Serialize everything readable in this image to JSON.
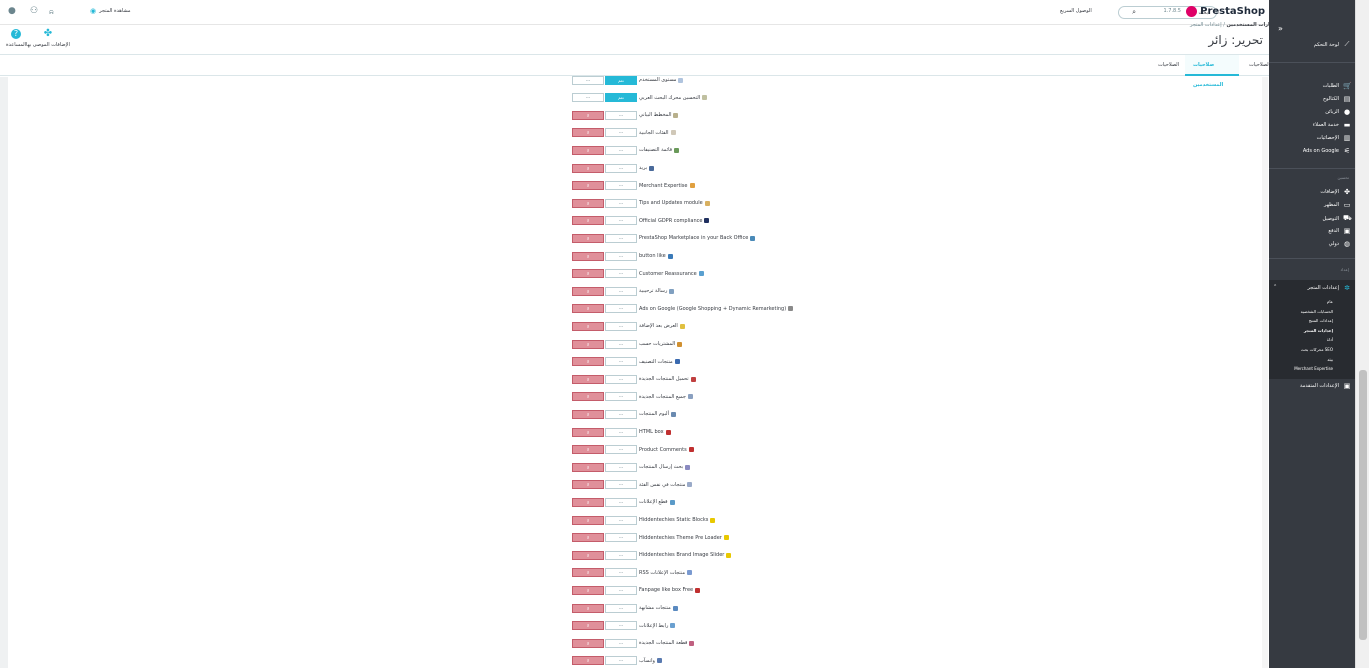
{
  "header": {
    "logo_text": "PrestaShop",
    "version": "1.7.8.5",
    "search_value": "بحث",
    "quick_access": "الوصول السريع",
    "view_shop": "مشاهدة المتجر"
  },
  "breadcrumb": {
    "parent": "إعدادات المتجر",
    "sep": "/",
    "current": "خيارات المستخدمين"
  },
  "page_title": "تحرير: زائر",
  "toolbar": {
    "recommended_modules": "الإضافات الموصى بها",
    "help": "المساعدة"
  },
  "tabs": [
    {
      "label": "الصلاحيات",
      "active": false
    },
    {
      "label": "صلاحيات المستخدمين",
      "active": true
    },
    {
      "label": "الصلاحيات",
      "active": false
    }
  ],
  "button_labels": {
    "yes": "نعم",
    "no": "لا",
    "none": "---"
  },
  "modules": [
    {
      "name": "مستوى المستخدم",
      "icon_color": "#b0c4de",
      "state": "yes"
    },
    {
      "name": "التحسين محرك البحث العربي",
      "icon_color": "#c0c0a0",
      "state": "yes"
    },
    {
      "name": "المخطط البياني",
      "icon_color": "#b8b08c",
      "state": "no"
    },
    {
      "name": "الفئات الجانبية",
      "icon_color": "#d0c8b8",
      "state": "no"
    },
    {
      "name": "قائمة التصنيفات",
      "icon_color": "#6a9a5a",
      "state": "no"
    },
    {
      "name": "بريد",
      "icon_color": "#4a6a9a",
      "state": "no"
    },
    {
      "name": "Merchant Expertise",
      "icon_color": "#e0a040",
      "state": "no"
    },
    {
      "name": "Tips and Updates module",
      "icon_color": "#d8b060",
      "state": "no"
    },
    {
      "name": "Official GDPR compliance",
      "icon_color": "#203060",
      "state": "no"
    },
    {
      "name": "PrestaShop Marketplace in your Back Office",
      "icon_color": "#4a8ab8",
      "state": "no"
    },
    {
      "name": "button like",
      "icon_color": "#3a7ab8",
      "state": "no"
    },
    {
      "name": "Customer Reassurance",
      "icon_color": "#5aa0d0",
      "state": "no"
    },
    {
      "name": "رسالة ترحيبية",
      "icon_color": "#80a0c0",
      "state": "no"
    },
    {
      "name": "Ads on Google (Google Shopping + Dynamic Remarketing)",
      "icon_color": "#8a8a8a",
      "state": "no"
    },
    {
      "name": "العرض بعد الإضافة",
      "icon_color": "#e0c040",
      "state": "no"
    },
    {
      "name": "المشتريات حسب",
      "icon_color": "#d09030",
      "state": "no"
    },
    {
      "name": "منتجات التصنيف",
      "icon_color": "#3a6ab0",
      "state": "no"
    },
    {
      "name": "تحميل المنتجات الجديدة",
      "icon_color": "#c04040",
      "state": "no"
    },
    {
      "name": "جميع المنتجات الجديدة",
      "icon_color": "#8aa0c0",
      "state": "no"
    },
    {
      "name": "ألبوم المنتجات",
      "icon_color": "#6a8ab0",
      "state": "no"
    },
    {
      "name": "HTML box",
      "icon_color": "#c03030",
      "state": "no"
    },
    {
      "name": "Product Comments",
      "icon_color": "#c03030",
      "state": "no"
    },
    {
      "name": "بحث إرسال المنتجات",
      "icon_color": "#8a8ac0",
      "state": "no"
    },
    {
      "name": "منتجات في نفس الفئة",
      "icon_color": "#9aaac8",
      "state": "no"
    },
    {
      "name": "قطع الإعلانات",
      "icon_color": "#5a9ac8",
      "state": "no"
    },
    {
      "name": "Hiddentechies Static Blocks",
      "icon_color": "#e8c800",
      "state": "no"
    },
    {
      "name": "Hiddentechies Theme Pre Loader",
      "icon_color": "#e8c800",
      "state": "no"
    },
    {
      "name": "Hiddentechies Brand Image Slider",
      "icon_color": "#e8c800",
      "state": "no"
    },
    {
      "name": "RSS منتجات الإعلانات",
      "icon_color": "#7a9ad0",
      "state": "no"
    },
    {
      "name": "Fanpage like box Free",
      "icon_color": "#c03030",
      "state": "no"
    },
    {
      "name": "منتجات مشابهة",
      "icon_color": "#5a8ac0",
      "state": "no"
    },
    {
      "name": "رابط الإعلانات",
      "icon_color": "#6aa0d0",
      "state": "no"
    },
    {
      "name": "قطعة المنتجات الجديدة",
      "icon_color": "#c06080",
      "state": "no"
    },
    {
      "name": "واتسآب",
      "icon_color": "#5a7ab0",
      "state": "no"
    }
  ],
  "sidebar": {
    "dashboard": "لوحة التحكم",
    "sell_items": [
      {
        "label": "الطلبات",
        "icon": "cart-icon"
      },
      {
        "label": "الكتالوج",
        "icon": "catalog-icon"
      },
      {
        "label": "الزبائن",
        "icon": "customers-icon"
      },
      {
        "label": "خدمة العملاء",
        "icon": "chat-icon"
      },
      {
        "label": "الإحصائيات",
        "icon": "stats-icon"
      },
      {
        "label": "Ads on Google",
        "icon": "google-icon"
      }
    ],
    "improve_heading": "تحسين",
    "improve_items": [
      {
        "label": "الإضافات",
        "icon": "puzzle-icon"
      },
      {
        "label": "المظهر",
        "icon": "monitor-icon"
      },
      {
        "label": "التوصيل",
        "icon": "truck-icon"
      },
      {
        "label": "الدفع",
        "icon": "card-icon"
      },
      {
        "label": "دولي",
        "icon": "globe-icon"
      }
    ],
    "configure_heading": "إعداد",
    "configure_active": "إعدادات المتجر",
    "configure_sub": [
      "عام",
      "الحسابات الشخصية",
      "إعدادات المنتج",
      "إعدادات المتجر",
      "أداة",
      "محركات بحث SEO",
      "بيئة",
      "Merchant Expertise"
    ],
    "advanced": "الإعدادات المتقدمة"
  }
}
